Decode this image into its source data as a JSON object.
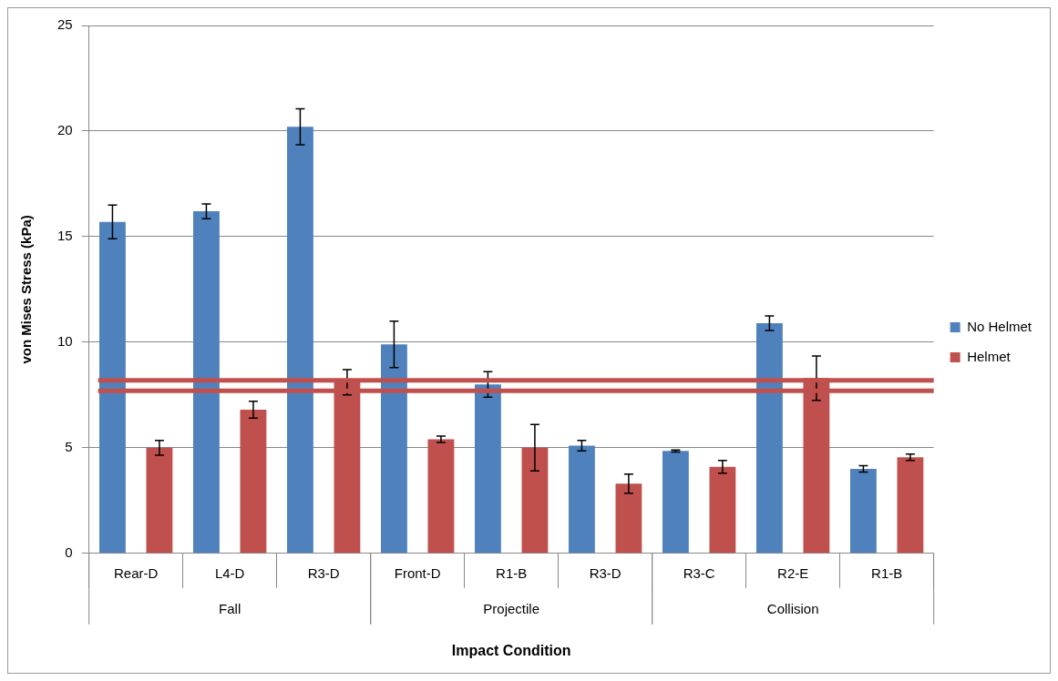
{
  "chart_data": {
    "type": "bar",
    "xlabel": "Impact Condition",
    "ylabel": "von Mises Stress (kPa)",
    "categories": [
      "Rear-D",
      "L4-D",
      "R3-D",
      "Front-D",
      "R1-B",
      "R3-D",
      "R3-C",
      "R2-E",
      "R1-B"
    ],
    "series": [
      {
        "name": "No Helmet",
        "color": "#4f81bd",
        "values": [
          15.7,
          16.2,
          20.2,
          9.9,
          8.0,
          5.1,
          4.85,
          10.9,
          4.0
        ],
        "errors": [
          0.8,
          0.35,
          0.85,
          1.1,
          0.6,
          0.25,
          0.05,
          0.35,
          0.15
        ]
      },
      {
        "name": "Helmet",
        "color": "#c0504d",
        "values": [
          5.0,
          6.8,
          8.1,
          5.4,
          5.0,
          3.3,
          4.1,
          8.3,
          4.55
        ],
        "errors": [
          0.35,
          0.4,
          0.6,
          0.15,
          1.1,
          0.45,
          0.3,
          1.05,
          0.15
        ]
      }
    ],
    "ylim": [
      0,
      25
    ],
    "yticks": [
      0,
      5,
      10,
      15,
      20,
      25
    ],
    "grid": "y",
    "legend": "right",
    "ref_lines": [
      {
        "axis": "y",
        "value": 8.2,
        "color": "#c0504d"
      },
      {
        "axis": "y",
        "value": 7.7,
        "color": "#c0504d"
      }
    ],
    "annotations": [
      "Fall",
      "Projectile",
      "Collision"
    ]
  }
}
